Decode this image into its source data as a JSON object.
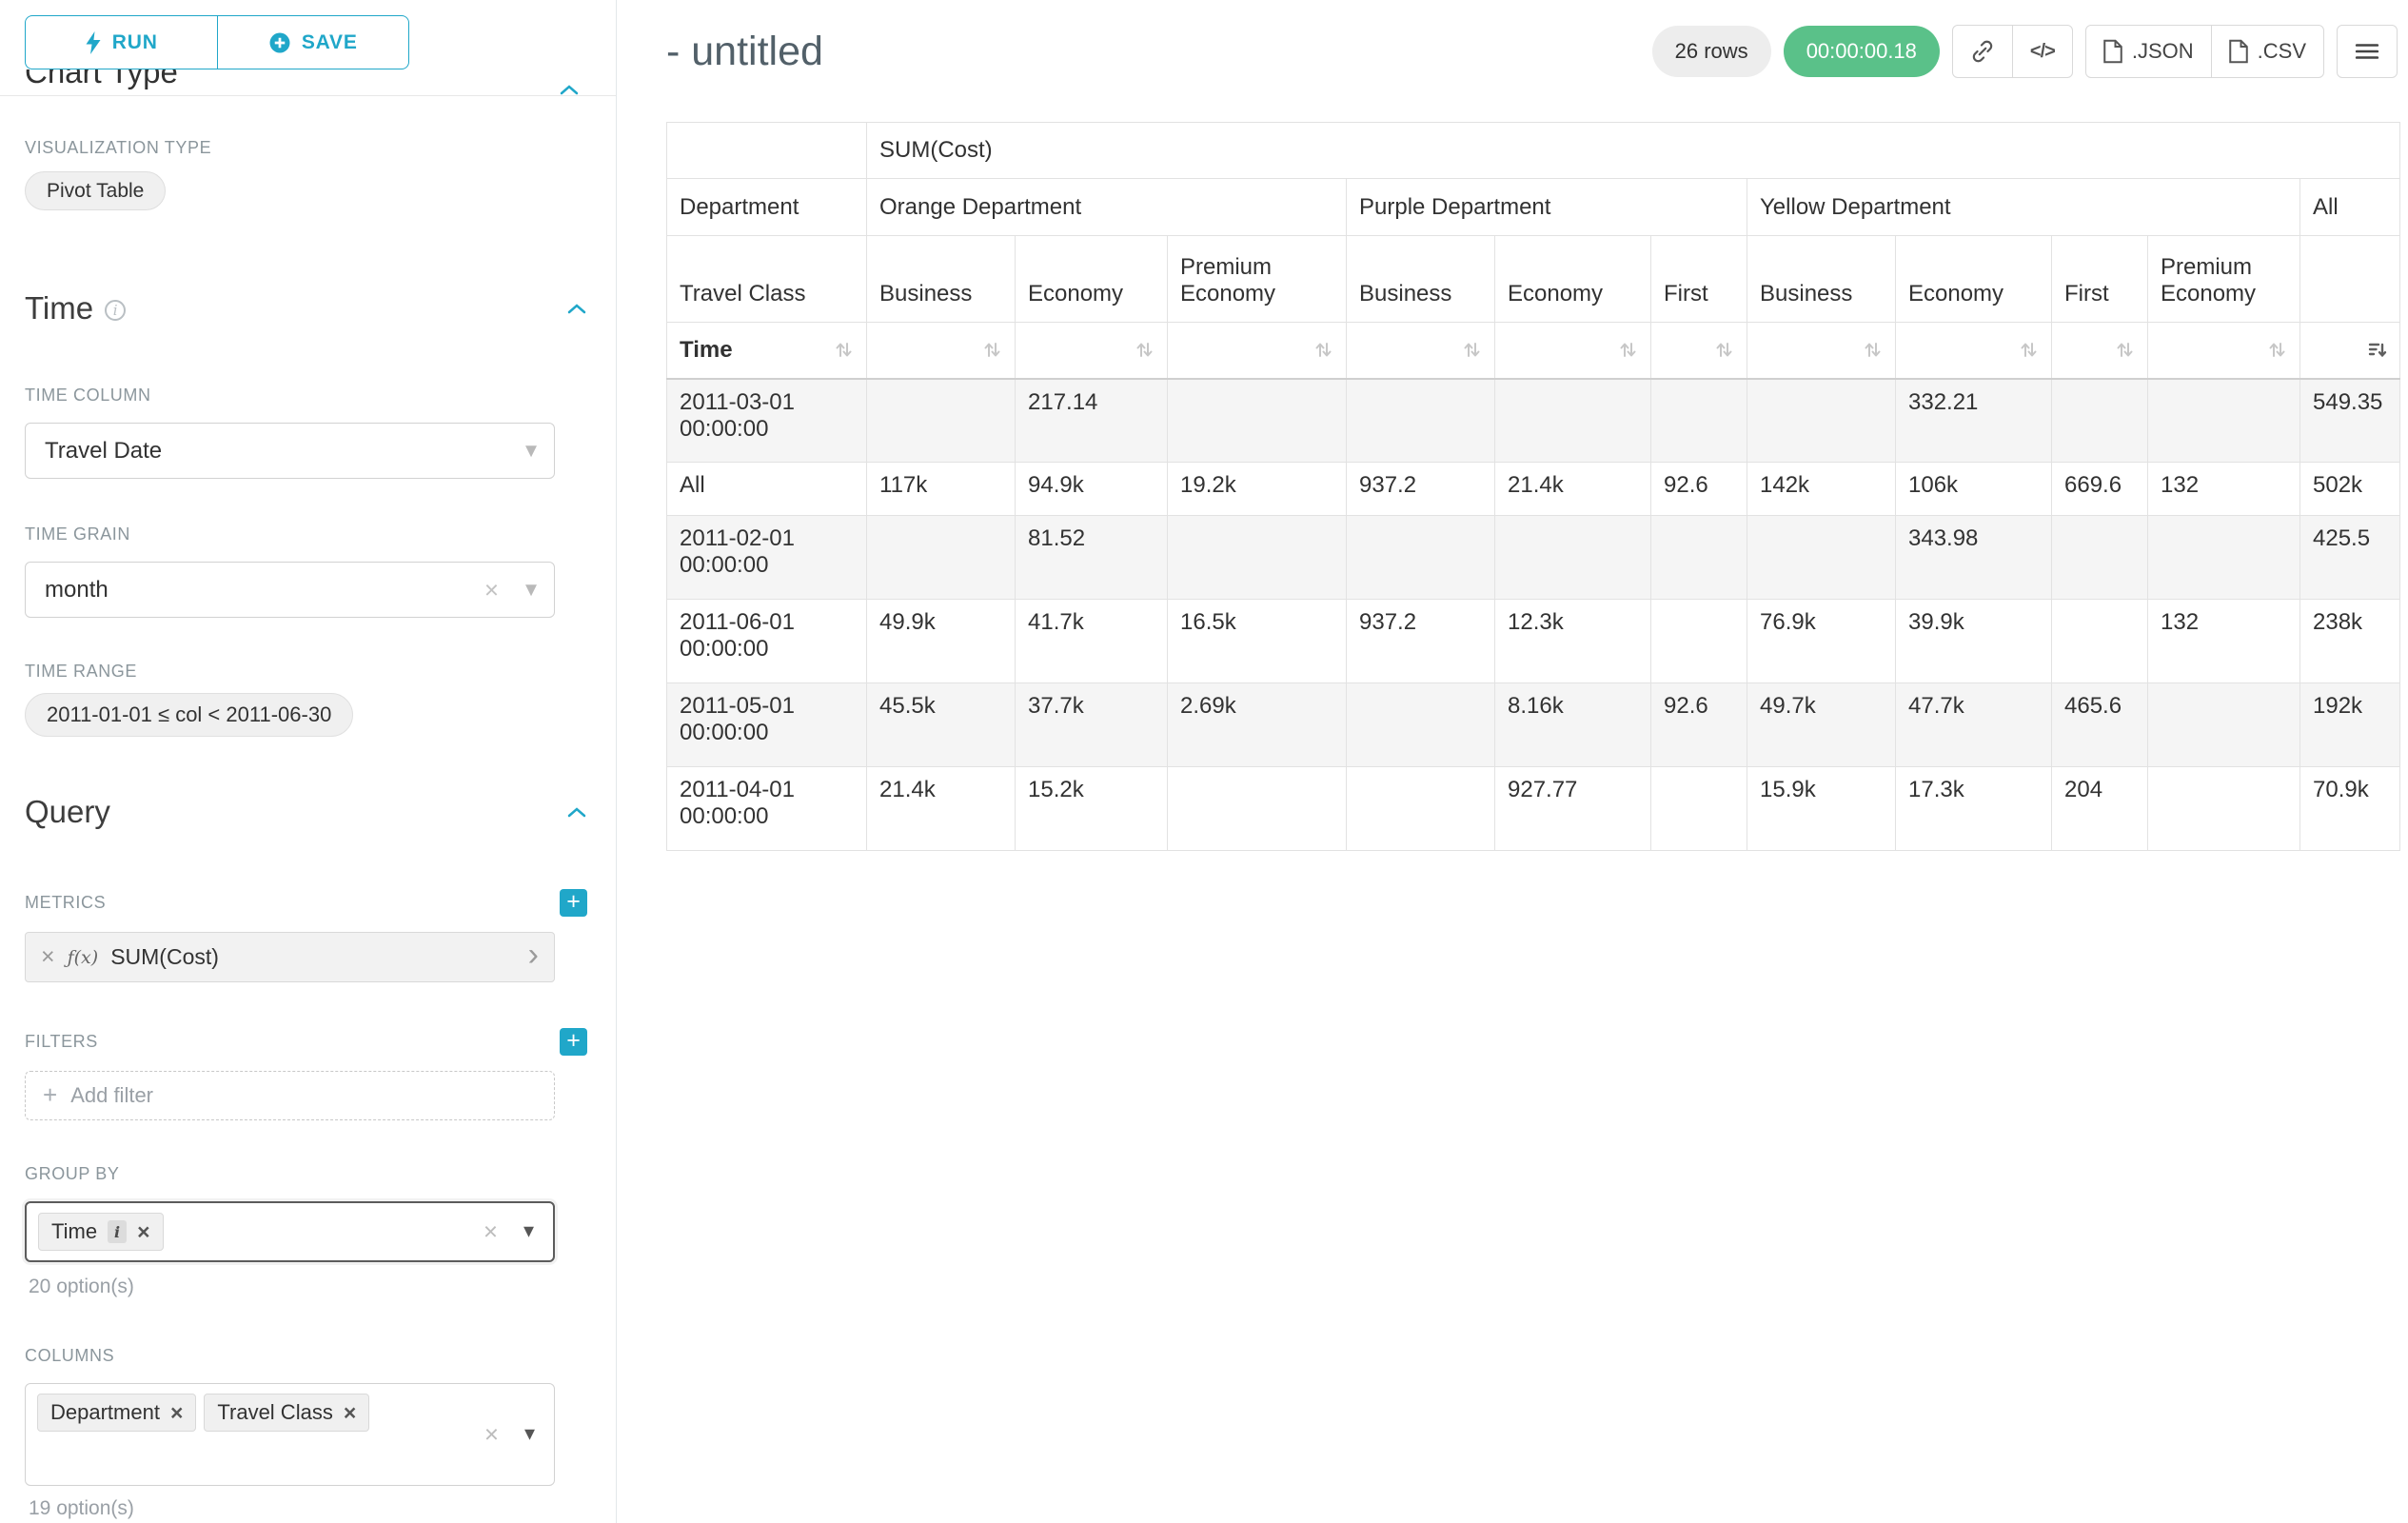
{
  "app": {
    "accent_color": "#20a7c9",
    "timer_color": "#5ac189"
  },
  "icons": {
    "caret": "▾",
    "close": "×",
    "plus": "+",
    "chevron_right": "›",
    "fx": "ƒ(x)",
    "info": "i",
    "code": "</>"
  },
  "sidebar": {
    "run_button": "RUN",
    "save_button": "SAVE",
    "chart_type_heading": "Chart Type",
    "visualization": {
      "label": "VISUALIZATION TYPE",
      "value": "Pivot Table"
    },
    "time": {
      "title": "Time",
      "time_column": {
        "label": "TIME COLUMN",
        "value": "Travel Date"
      },
      "time_grain": {
        "label": "TIME GRAIN",
        "value": "month"
      },
      "time_range": {
        "label": "TIME RANGE",
        "value": "2011-01-01 ≤ col < 2011-06-30"
      }
    },
    "query": {
      "title": "Query",
      "metrics": {
        "label": "METRICS",
        "value": "SUM(Cost)"
      },
      "filters": {
        "label": "FILTERS",
        "placeholder": "Add filter"
      },
      "group_by": {
        "label": "GROUP BY",
        "values": [
          "Time"
        ],
        "hint": "20 option(s)"
      },
      "columns": {
        "label": "COLUMNS",
        "values": [
          "Department",
          "Travel Class"
        ],
        "hint": "19 option(s)"
      }
    }
  },
  "main": {
    "title": "- untitled",
    "rows_badge": "26 rows",
    "timer": "00:00:00.18",
    "export_json": ".JSON",
    "export_csv": ".CSV"
  },
  "chart_data": {
    "type": "table",
    "metric_header": "SUM(Cost)",
    "row_header": "Department",
    "class_header": "Travel Class",
    "time_label": "Time",
    "column_groups": [
      {
        "label": "Orange Department",
        "classes": [
          "Business",
          "Economy",
          "Premium Economy"
        ]
      },
      {
        "label": "Purple Department",
        "classes": [
          "Business",
          "Economy",
          "First"
        ]
      },
      {
        "label": "Yellow Department",
        "classes": [
          "Business",
          "Economy",
          "First",
          "Premium Economy"
        ]
      },
      {
        "label": "All",
        "classes": [
          ""
        ]
      }
    ],
    "sort": {
      "column": "All",
      "direction": "desc"
    },
    "rows": [
      {
        "label": "2011-03-01 00:00:00",
        "total": false,
        "values": [
          "",
          "217.14",
          "",
          "",
          "",
          "",
          "",
          "332.21",
          "",
          "",
          "549.35"
        ]
      },
      {
        "label": "All",
        "total": true,
        "values": [
          "117k",
          "94.9k",
          "19.2k",
          "937.2",
          "21.4k",
          "92.6",
          "142k",
          "106k",
          "669.6",
          "132",
          "502k"
        ]
      },
      {
        "label": "2011-02-01 00:00:00",
        "total": false,
        "values": [
          "",
          "81.52",
          "",
          "",
          "",
          "",
          "",
          "343.98",
          "",
          "",
          "425.5"
        ]
      },
      {
        "label": "2011-06-01 00:00:00",
        "total": false,
        "values": [
          "49.9k",
          "41.7k",
          "16.5k",
          "937.2",
          "12.3k",
          "",
          "76.9k",
          "39.9k",
          "",
          "132",
          "238k"
        ]
      },
      {
        "label": "2011-05-01 00:00:00",
        "total": false,
        "values": [
          "45.5k",
          "37.7k",
          "2.69k",
          "",
          "8.16k",
          "92.6",
          "49.7k",
          "47.7k",
          "465.6",
          "",
          "192k"
        ]
      },
      {
        "label": "2011-04-01 00:00:00",
        "total": false,
        "values": [
          "21.4k",
          "15.2k",
          "",
          "",
          "927.77",
          "",
          "15.9k",
          "17.3k",
          "204",
          "",
          "70.9k"
        ]
      }
    ]
  }
}
